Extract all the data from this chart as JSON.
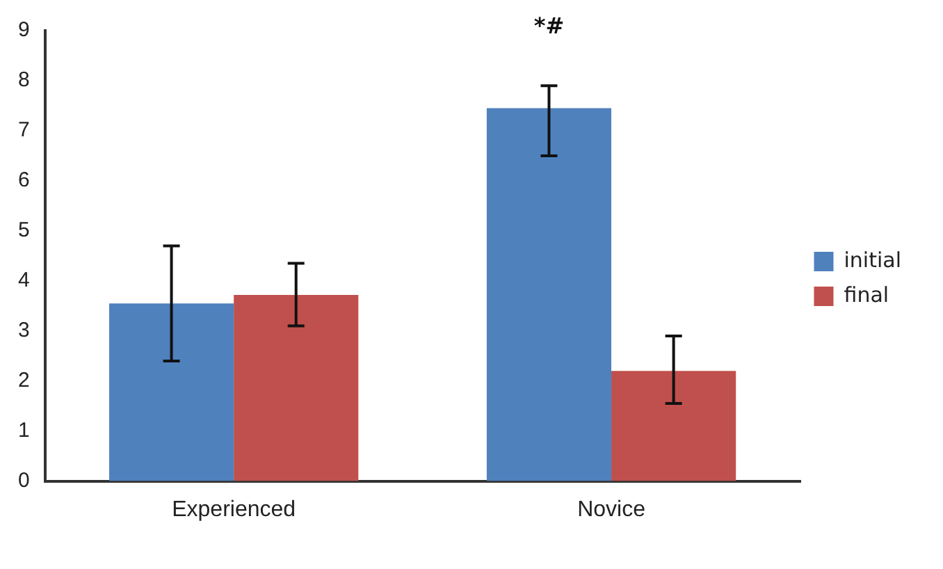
{
  "chart_data": {
    "type": "bar",
    "categories": [
      "Experienced",
      "Novice"
    ],
    "series": [
      {
        "name": "initial",
        "color": "#4f81bd",
        "values": [
          3.55,
          7.45
        ],
        "errors": [
          [
            2.4,
            4.7
          ],
          [
            6.5,
            7.9
          ]
        ]
      },
      {
        "name": "final",
        "color": "#c0504d",
        "values": [
          3.72,
          2.2
        ],
        "errors": [
          [
            3.1,
            4.35
          ],
          [
            1.55,
            2.9
          ]
        ]
      }
    ],
    "ylim": [
      0,
      9
    ],
    "yticks": [
      0,
      1,
      2,
      3,
      4,
      5,
      6,
      7,
      8,
      9
    ],
    "grid": false,
    "legend": "right",
    "annotations": [
      "*#"
    ]
  }
}
